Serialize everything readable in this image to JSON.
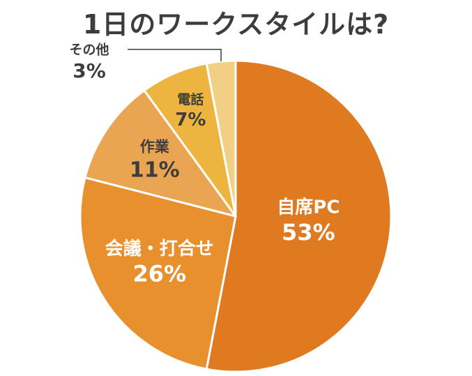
{
  "chart_data": {
    "type": "pie",
    "title": "1日のワークスタイルは?",
    "start": "12 o'clock",
    "direction": "clockwise",
    "slices": [
      {
        "label": "自席PC",
        "value": 53,
        "value_label": "53%",
        "color": "#e07a20",
        "label_color": "#ffffff"
      },
      {
        "label": "会議・打合せ",
        "value": 26,
        "value_label": "26%",
        "color": "#e8902d",
        "label_color": "#ffffff"
      },
      {
        "label": "作業",
        "value": 11,
        "value_label": "11%",
        "color": "#eaa552",
        "label_color": "#3d3d3d"
      },
      {
        "label": "電話",
        "value": 7,
        "value_label": "7%",
        "color": "#edb540",
        "label_color": "#3d3d3d"
      },
      {
        "label": "その他",
        "value": 3,
        "value_label": "3%",
        "color": "#f1cf84",
        "label_color": "#3d3d3d",
        "label_position": "outside-left"
      }
    ]
  }
}
